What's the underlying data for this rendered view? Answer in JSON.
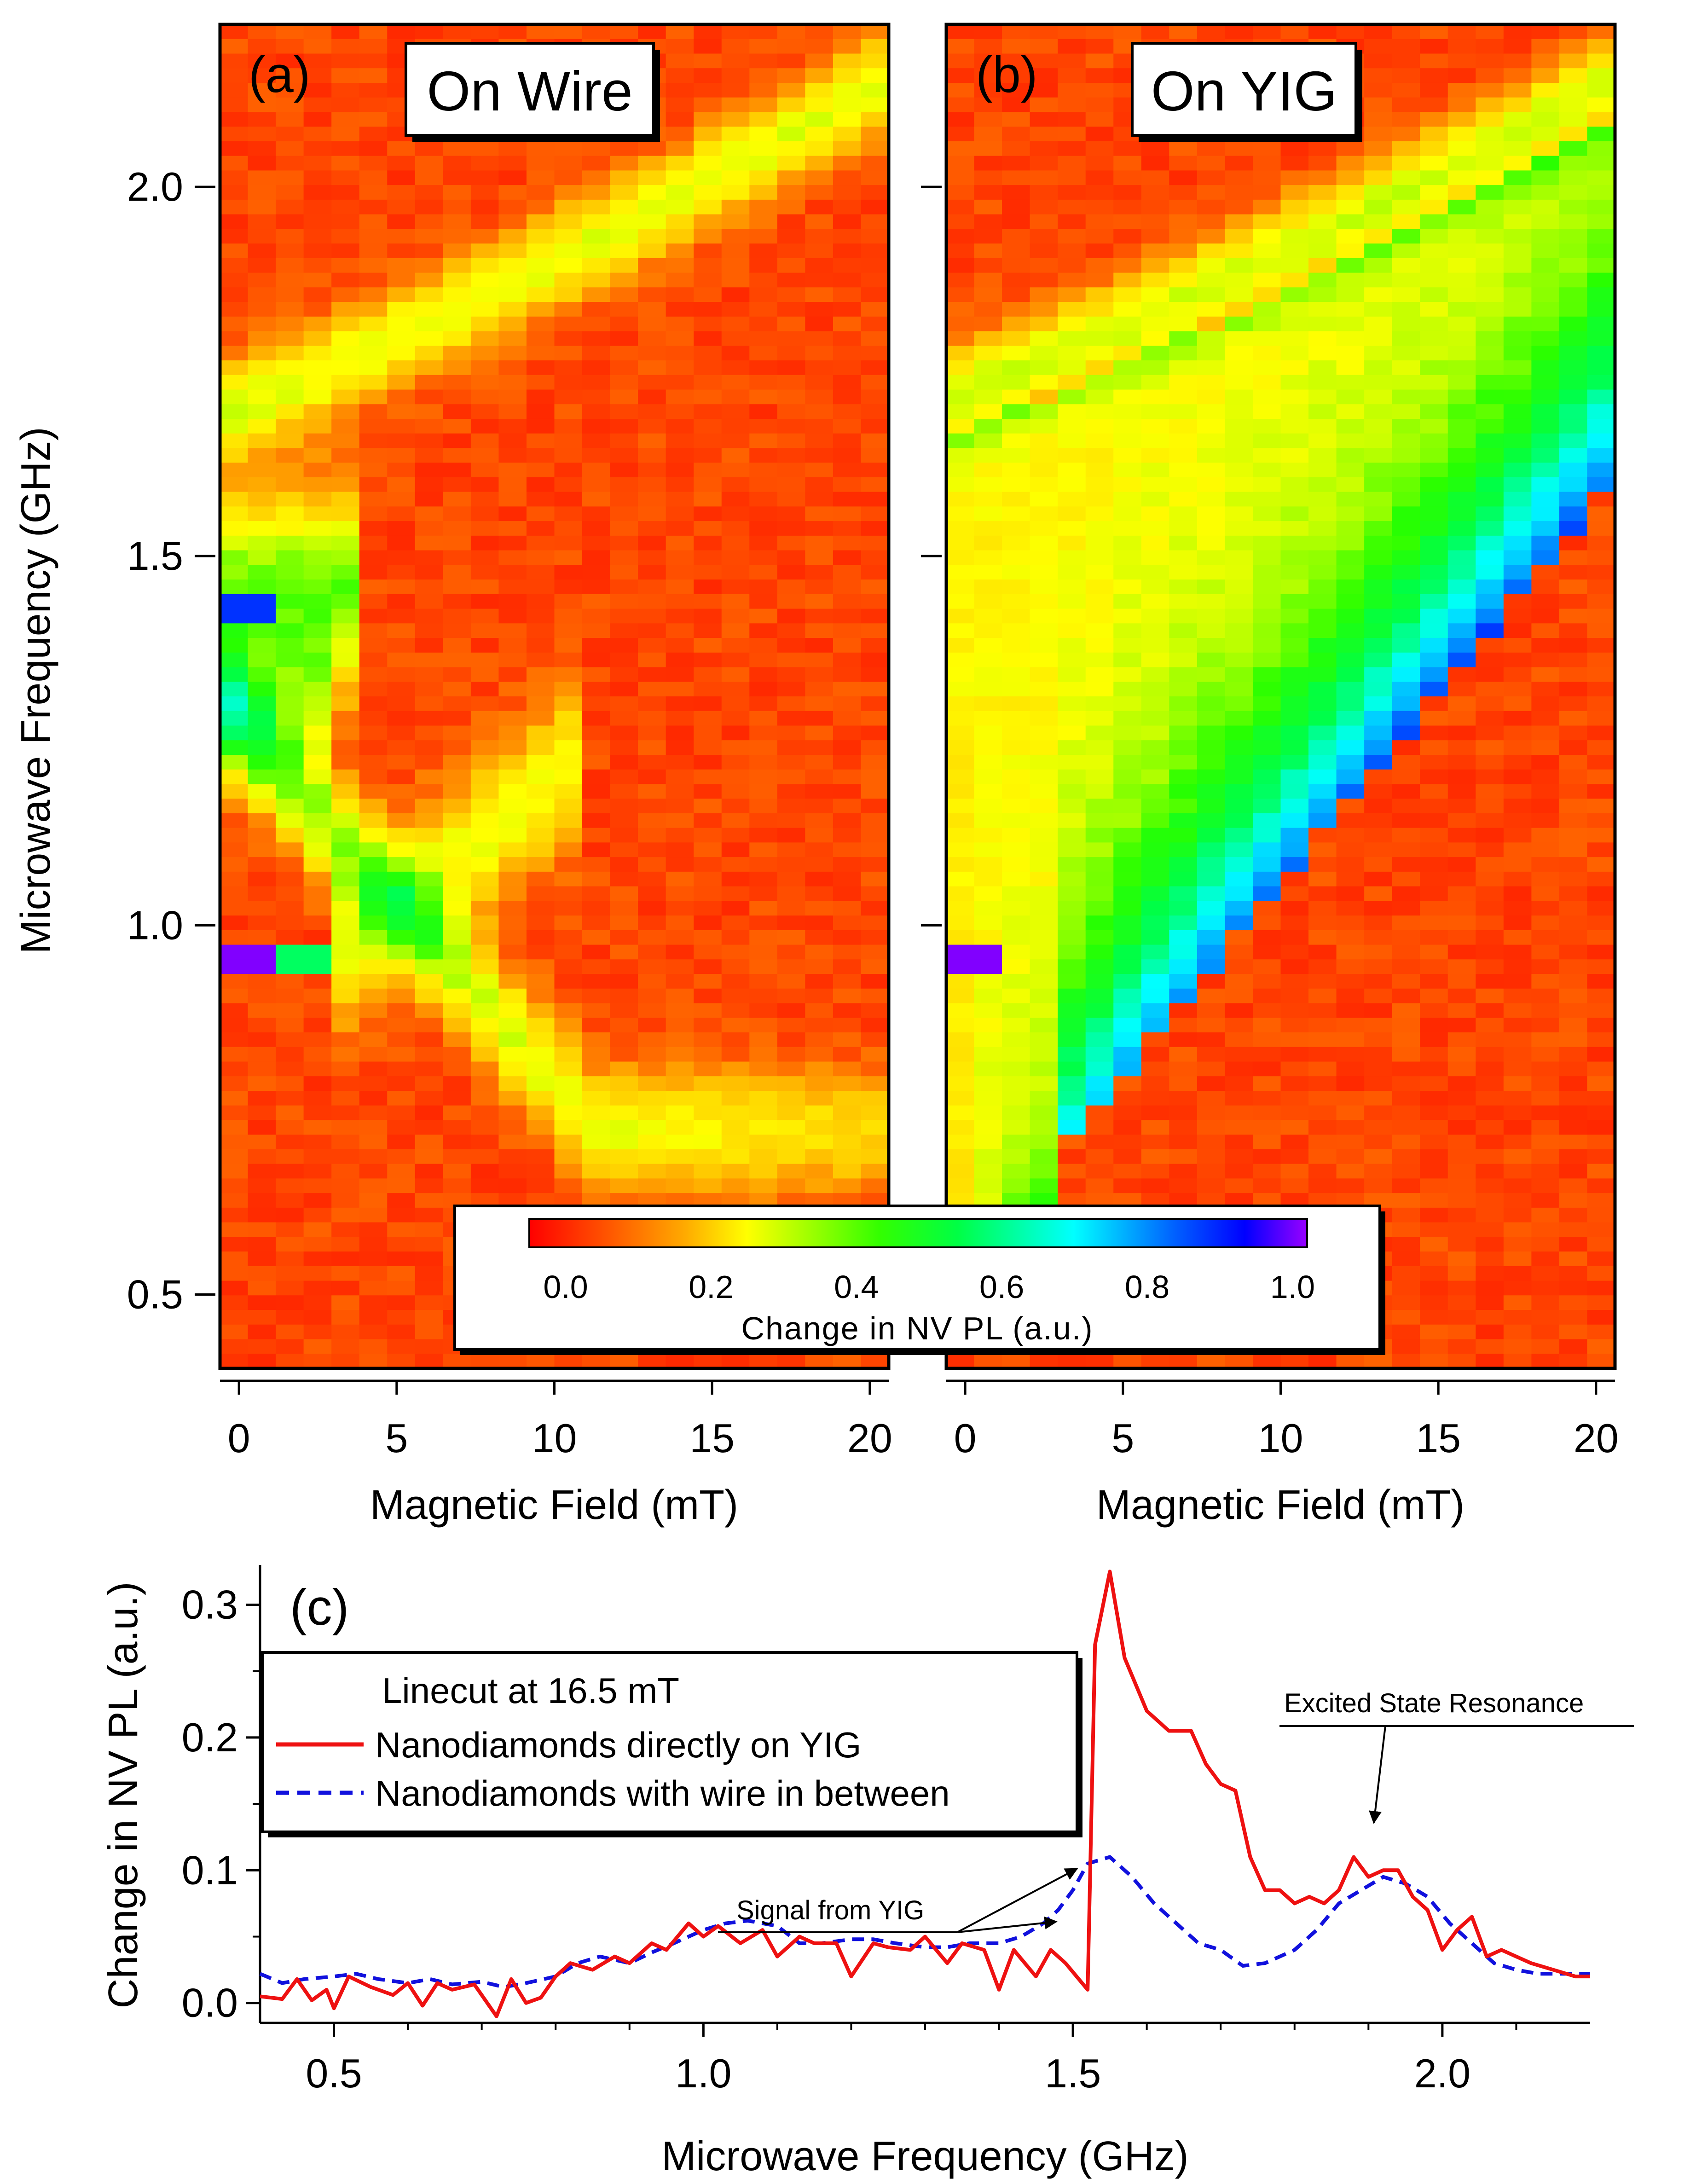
{
  "colors": {
    "background": "#ffffff",
    "axis": "#000000",
    "yig_trace": "#ee1111",
    "wire_trace": "#1111dd"
  },
  "chart_data": [
    {
      "type": "heatmap",
      "panel": "(a)",
      "title": "On Wire",
      "xlabel": "Magnetic Field (mT)",
      "ylabel": "Microwave Frequency (GHz)",
      "xlim": [
        -0.6,
        20.6
      ],
      "ylim": [
        0.4,
        2.22
      ],
      "x_ticks": [
        "0",
        "5",
        "10",
        "15",
        "20"
      ],
      "y_ticks": [
        "0.5",
        "1.0",
        "1.5",
        "2.0"
      ],
      "value_range": [
        -0.05,
        1.02
      ],
      "features": {
        "baseline_level": 0.0,
        "main_resonance": "shifts up from ~1.7 GHz at 0 mT to ~2.08 GHz at 20 mT",
        "lower_branch": "near 1.25 GHz at 0 mT dropping toward ~0.72 GHz",
        "zero_field_spots": [
          {
            "x": 0,
            "y": 1.43,
            "value": 0.82
          },
          {
            "x": 0,
            "y": 0.96,
            "value": 1.0
          }
        ]
      }
    },
    {
      "type": "heatmap",
      "panel": "(b)",
      "title": "On YIG",
      "xlabel": "Magnetic Field (mT)",
      "ylabel": "Microwave Frequency (GHz)",
      "xlim": [
        -0.6,
        20.6
      ],
      "ylim": [
        0.4,
        2.22
      ],
      "x_ticks": [
        "0",
        "5",
        "10",
        "15",
        "20"
      ],
      "y_ticks": [
        "0.5",
        "1.0",
        "1.5",
        "2.0"
      ],
      "value_range": [
        -0.05,
        1.02
      ],
      "features": {
        "baseline_level": 0.0,
        "main_resonance": "shifts up from ~1.7 GHz at 0 mT to ~2.05 GHz at 20 mT",
        "yig_edge": "strong band below YIG FMR edge, from ~0.7 GHz at 3.5 mT to ~1.7 GHz at 20 mT",
        "zero_field_spots": [
          {
            "x": 0,
            "y": 0.96,
            "value": 1.0
          }
        ]
      }
    },
    {
      "type": "line",
      "panel": "(c)",
      "xlabel": "Microwave Frequency (GHz)",
      "ylabel": "Change in NV PL (a.u.)",
      "xlim": [
        0.4,
        2.2
      ],
      "ylim": [
        -0.015,
        0.33
      ],
      "x_ticks": [
        "0.5",
        "1.0",
        "1.5",
        "2.0"
      ],
      "y_ticks": [
        "0.0",
        "0.1",
        "0.2",
        "0.3"
      ],
      "legend_title": "Linecut at 16.5 mT",
      "legend_position": "top-left",
      "series": [
        {
          "name": "Nanodiamonds directly on YIG",
          "style": "solid",
          "x": [
            0.4,
            0.43,
            0.45,
            0.47,
            0.49,
            0.5,
            0.52,
            0.55,
            0.58,
            0.6,
            0.62,
            0.64,
            0.66,
            0.69,
            0.72,
            0.74,
            0.76,
            0.78,
            0.8,
            0.82,
            0.85,
            0.88,
            0.9,
            0.93,
            0.95,
            0.98,
            1.0,
            1.02,
            1.05,
            1.08,
            1.1,
            1.13,
            1.15,
            1.18,
            1.2,
            1.23,
            1.25,
            1.28,
            1.3,
            1.33,
            1.35,
            1.38,
            1.4,
            1.42,
            1.45,
            1.47,
            1.49,
            1.52,
            1.53,
            1.55,
            1.57,
            1.6,
            1.63,
            1.66,
            1.68,
            1.7,
            1.72,
            1.74,
            1.76,
            1.78,
            1.8,
            1.82,
            1.84,
            1.86,
            1.88,
            1.9,
            1.92,
            1.94,
            1.96,
            1.98,
            2.0,
            2.02,
            2.04,
            2.06,
            2.08,
            2.1,
            2.12,
            2.15,
            2.18,
            2.2
          ],
          "y": [
            0.005,
            0.003,
            0.018,
            0.002,
            0.01,
            -0.004,
            0.02,
            0.012,
            0.006,
            0.015,
            -0.002,
            0.015,
            0.01,
            0.014,
            -0.01,
            0.018,
            0.0,
            0.004,
            0.02,
            0.03,
            0.025,
            0.035,
            0.03,
            0.045,
            0.04,
            0.06,
            0.05,
            0.058,
            0.045,
            0.055,
            0.035,
            0.05,
            0.045,
            0.045,
            0.02,
            0.045,
            0.042,
            0.04,
            0.05,
            0.03,
            0.045,
            0.04,
            0.01,
            0.04,
            0.02,
            0.04,
            0.03,
            0.01,
            0.27,
            0.325,
            0.26,
            0.22,
            0.205,
            0.205,
            0.18,
            0.165,
            0.16,
            0.11,
            0.085,
            0.085,
            0.075,
            0.08,
            0.075,
            0.085,
            0.11,
            0.095,
            0.1,
            0.1,
            0.08,
            0.07,
            0.04,
            0.055,
            0.065,
            0.035,
            0.04,
            0.035,
            0.03,
            0.025,
            0.02,
            0.02
          ]
        },
        {
          "name": "Nanodiamonds with wire in between",
          "style": "dashed",
          "x": [
            0.4,
            0.43,
            0.46,
            0.5,
            0.53,
            0.56,
            0.6,
            0.63,
            0.66,
            0.7,
            0.73,
            0.76,
            0.8,
            0.83,
            0.86,
            0.9,
            0.93,
            0.96,
            1.0,
            1.03,
            1.06,
            1.1,
            1.13,
            1.16,
            1.2,
            1.23,
            1.26,
            1.3,
            1.33,
            1.36,
            1.4,
            1.43,
            1.46,
            1.48,
            1.5,
            1.52,
            1.55,
            1.58,
            1.61,
            1.64,
            1.67,
            1.7,
            1.73,
            1.76,
            1.8,
            1.83,
            1.86,
            1.89,
            1.92,
            1.95,
            1.98,
            2.01,
            2.04,
            2.07,
            2.1,
            2.13,
            2.16,
            2.2
          ],
          "y": [
            0.022,
            0.015,
            0.018,
            0.02,
            0.022,
            0.018,
            0.015,
            0.018,
            0.014,
            0.016,
            0.012,
            0.015,
            0.02,
            0.03,
            0.035,
            0.03,
            0.038,
            0.045,
            0.055,
            0.06,
            0.062,
            0.058,
            0.045,
            0.045,
            0.048,
            0.048,
            0.045,
            0.042,
            0.042,
            0.045,
            0.045,
            0.05,
            0.06,
            0.07,
            0.085,
            0.105,
            0.11,
            0.095,
            0.075,
            0.06,
            0.045,
            0.04,
            0.028,
            0.03,
            0.04,
            0.055,
            0.075,
            0.085,
            0.095,
            0.09,
            0.08,
            0.06,
            0.045,
            0.03,
            0.025,
            0.022,
            0.022,
            0.022
          ]
        }
      ],
      "annotations": [
        {
          "text": "Signal from YIG",
          "target_x": 1.51,
          "target_y": 0.135
        },
        {
          "text": "Excited State Resonance",
          "target_x": 1.9,
          "target_y": 0.112
        }
      ]
    }
  ],
  "panel_labels": {
    "a": "(a)",
    "b": "(b)",
    "c": "(c)"
  },
  "panel_titles": {
    "a": "On Wire",
    "b": "On YIG"
  },
  "axes": {
    "heatmap_xlabel": "Magnetic Field (mT)",
    "heatmap_ylabel": "Microwave Frequency (GHz)",
    "line_xlabel": "Microwave Frequency (GHz)",
    "line_ylabel": "Change in NV PL (a.u.)"
  },
  "colorbar": {
    "label": "Change in NV PL (a.u.)",
    "ticks": [
      "0.0",
      "0.2",
      "0.4",
      "0.6",
      "0.8",
      "1.0"
    ],
    "range": [
      -0.05,
      1.02
    ]
  },
  "legend": {
    "title": "Linecut at 16.5 mT",
    "yig": "Nanodiamonds directly on YIG",
    "wire": "Nanodiamonds with wire in between"
  },
  "annotations": {
    "yig_signal": "Signal from YIG",
    "excited_state": "Excited State Resonance"
  }
}
